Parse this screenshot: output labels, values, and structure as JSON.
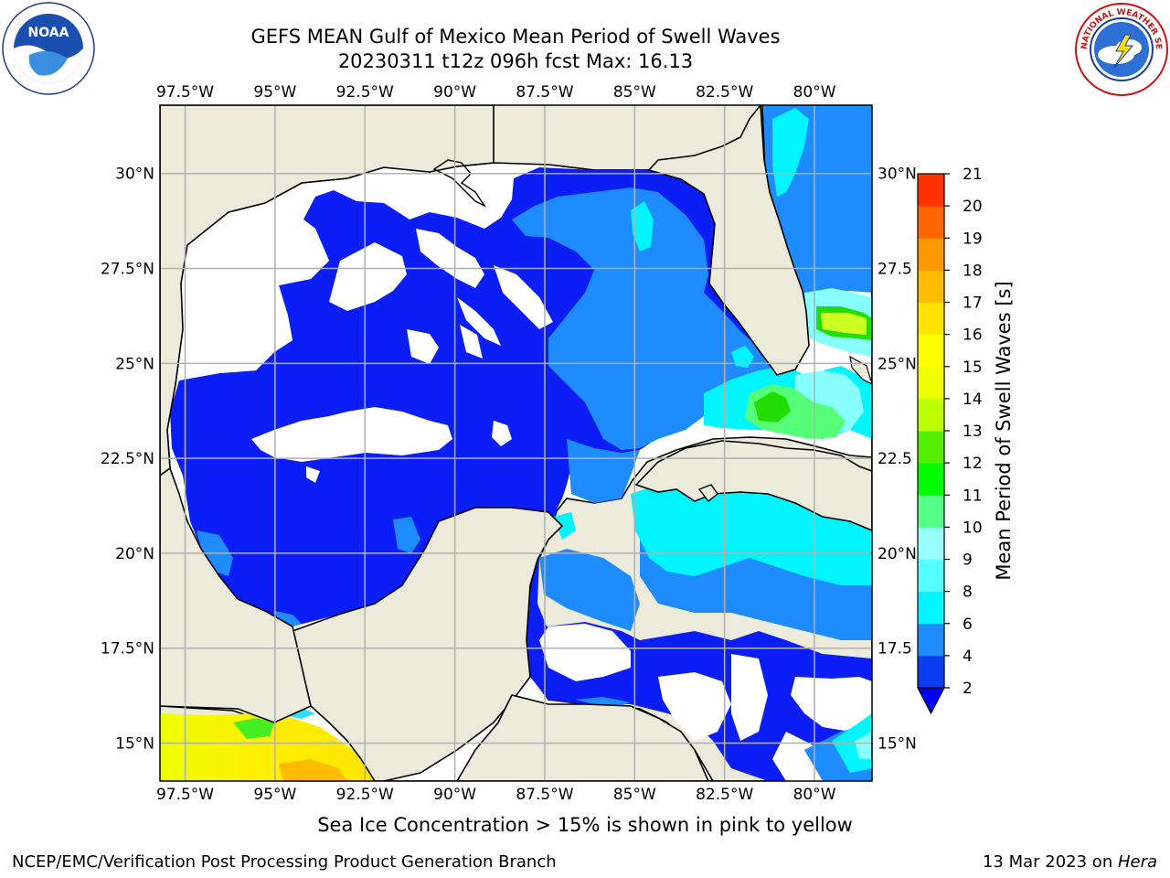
{
  "header": {
    "title_line1": "GEFS MEAN Gulf of Mexico Mean Period of Swell Waves",
    "title_line2": "20230311 t12z 096h fcst   Max: 16.13"
  },
  "logos": {
    "left": "NOAA",
    "right": "NATIONAL WEATHER SERVICE"
  },
  "map": {
    "region": "Gulf of Mexico",
    "lon_ticks": [
      "97.5°W",
      "95°W",
      "92.5°W",
      "90°W",
      "87.5°W",
      "85°W",
      "82.5°W",
      "80°W"
    ],
    "lon_values": [
      -97.5,
      -95,
      -92.5,
      -90,
      -87.5,
      -85,
      -82.5,
      -80
    ],
    "lat_ticks_left": [
      "30°N",
      "27.5°N",
      "25°N",
      "22.5°N",
      "20°N",
      "17.5°N",
      "15°N"
    ],
    "lat_ticks_right": [
      "30°N",
      "27.5",
      "25°N",
      "22.5",
      "20°N",
      "17.5",
      "15°N"
    ],
    "lat_values": [
      30,
      27.5,
      25,
      22.5,
      20,
      17.5,
      15
    ],
    "extent": {
      "lon_min": -98.2,
      "lon_max": -78.4,
      "lat_min": 14.0,
      "lat_max": 31.8
    },
    "colors": {
      "land": "#ecebdb",
      "ocean_no_data": "#ffffff",
      "grid": "#b0b0b0"
    }
  },
  "colorbar": {
    "label": "Mean Period of Swell Waves [s]",
    "levels": [
      "2",
      "4",
      "6",
      "8",
      "9",
      "10",
      "11",
      "12",
      "13",
      "14",
      "15",
      "16",
      "17",
      "18",
      "19",
      "20",
      "21"
    ],
    "colors": [
      "#0a3cf0",
      "#1e8cff",
      "#00f5ff",
      "#55ffff",
      "#99ffff",
      "#55ff88",
      "#00ff00",
      "#55ee00",
      "#bbff00",
      "#eeff00",
      "#ffff00",
      "#ffe400",
      "#ffbb00",
      "#ff9900",
      "#ff6600",
      "#ff3300"
    ],
    "extend_color": "#0000ff"
  },
  "notes": {
    "ice": "Sea Ice Concentration > 15% is shown in pink to yellow",
    "footer_left": "NCEP/EMC/Verification Post Processing Product Generation Branch",
    "footer_right_date": "13 Mar 2023 on ",
    "footer_right_host": "Hera"
  }
}
